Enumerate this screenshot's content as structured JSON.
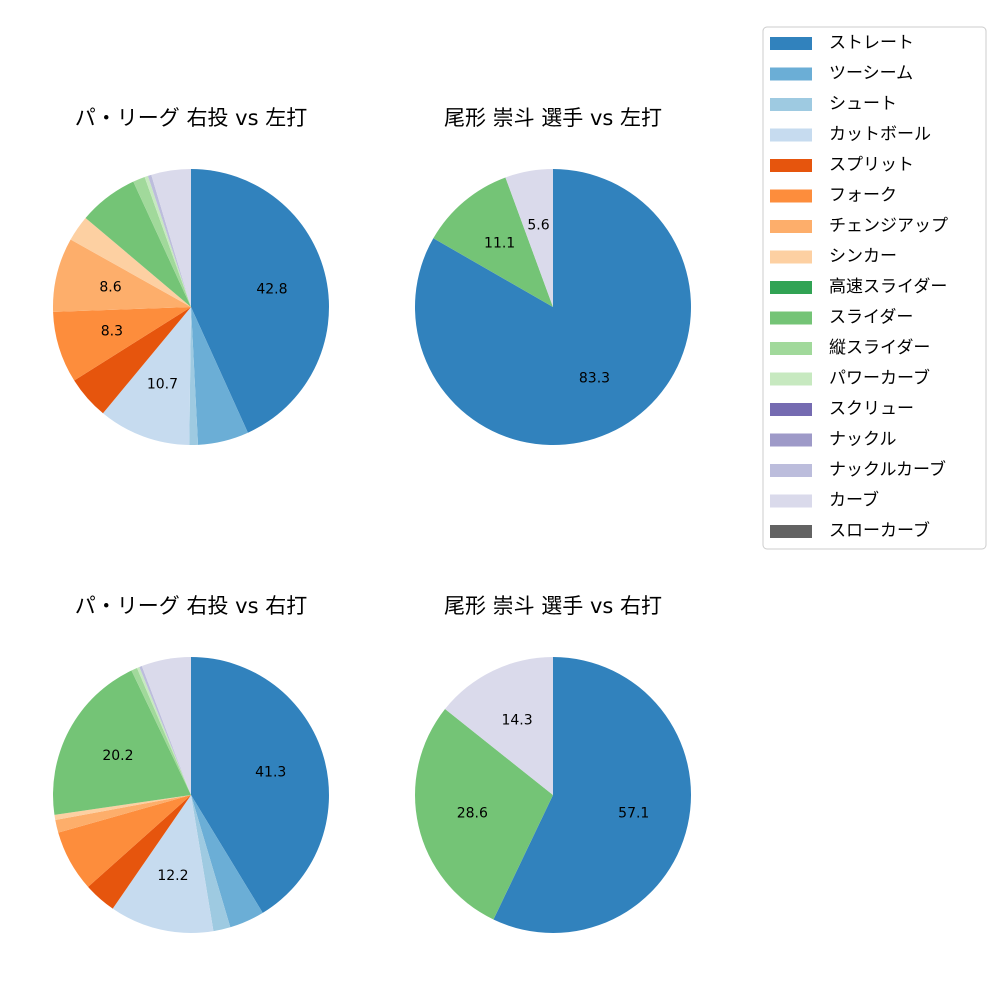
{
  "legend": {
    "placement": "right",
    "entries": [
      {
        "name": "ストレート",
        "color": "#3182bd"
      },
      {
        "name": "ツーシーム",
        "color": "#6baed6"
      },
      {
        "name": "シュート",
        "color": "#9ecae1"
      },
      {
        "name": "カットボール",
        "color": "#c6dbef"
      },
      {
        "name": "スプリット",
        "color": "#e6550d"
      },
      {
        "name": "フォーク",
        "color": "#fd8d3c"
      },
      {
        "name": "チェンジアップ",
        "color": "#fdae6b"
      },
      {
        "name": "シンカー",
        "color": "#fdd0a2"
      },
      {
        "name": "高速スライダー",
        "color": "#31a354"
      },
      {
        "name": "スライダー",
        "color": "#74c476"
      },
      {
        "name": "縦スライダー",
        "color": "#a1d99b"
      },
      {
        "name": "パワーカーブ",
        "color": "#c7e9c0"
      },
      {
        "name": "スクリュー",
        "color": "#756bb1"
      },
      {
        "name": "ナックル",
        "color": "#9e9ac8"
      },
      {
        "name": "ナックルカーブ",
        "color": "#bcbddc"
      },
      {
        "name": "カーブ",
        "color": "#dadaeb"
      },
      {
        "name": "スローカーブ",
        "color": "#636363"
      }
    ]
  },
  "chart_data": [
    {
      "type": "pie",
      "title": "パ・リーグ 右投 vs 左打",
      "start_angle": 90,
      "direction": "clockwise",
      "slices": [
        {
          "name": "ストレート",
          "value": 42.8,
          "label": "42.8"
        },
        {
          "name": "ツーシーム",
          "value": 5.9,
          "label": ""
        },
        {
          "name": "シュート",
          "value": 1.0,
          "label": ""
        },
        {
          "name": "カットボール",
          "value": 10.7,
          "label": "10.7"
        },
        {
          "name": "スプリット",
          "value": 5.0,
          "label": ""
        },
        {
          "name": "フォーク",
          "value": 8.3,
          "label": "8.3"
        },
        {
          "name": "チェンジアップ",
          "value": 8.6,
          "label": "8.6"
        },
        {
          "name": "シンカー",
          "value": 3.0,
          "label": ""
        },
        {
          "name": "スライダー",
          "value": 6.9,
          "label": ""
        },
        {
          "name": "縦スライダー",
          "value": 1.4,
          "label": ""
        },
        {
          "name": "パワーカーブ",
          "value": 0.4,
          "label": ""
        },
        {
          "name": "ナックルカーブ",
          "value": 0.4,
          "label": ""
        },
        {
          "name": "カーブ",
          "value": 4.6,
          "label": ""
        }
      ]
    },
    {
      "type": "pie",
      "title": "尾形 崇斗 選手 vs 左打",
      "start_angle": 90,
      "direction": "clockwise",
      "slices": [
        {
          "name": "ストレート",
          "value": 83.3,
          "label": "83.3"
        },
        {
          "name": "スライダー",
          "value": 11.1,
          "label": "11.1"
        },
        {
          "name": "カーブ",
          "value": 5.6,
          "label": "5.6"
        }
      ]
    },
    {
      "type": "pie",
      "title": "パ・リーグ 右投 vs 右打",
      "start_angle": 90,
      "direction": "clockwise",
      "slices": [
        {
          "name": "ストレート",
          "value": 41.3,
          "label": "41.3"
        },
        {
          "name": "ツーシーム",
          "value": 4.1,
          "label": ""
        },
        {
          "name": "シュート",
          "value": 2.0,
          "label": ""
        },
        {
          "name": "カットボール",
          "value": 12.2,
          "label": "12.2"
        },
        {
          "name": "スプリット",
          "value": 3.8,
          "label": ""
        },
        {
          "name": "フォーク",
          "value": 7.2,
          "label": ""
        },
        {
          "name": "チェンジアップ",
          "value": 1.5,
          "label": ""
        },
        {
          "name": "シンカー",
          "value": 0.6,
          "label": ""
        },
        {
          "name": "スライダー",
          "value": 20.2,
          "label": "20.2"
        },
        {
          "name": "縦スライダー",
          "value": 0.7,
          "label": ""
        },
        {
          "name": "パワーカーブ",
          "value": 0.3,
          "label": ""
        },
        {
          "name": "ナックルカーブ",
          "value": 0.3,
          "label": ""
        },
        {
          "name": "カーブ",
          "value": 5.8,
          "label": ""
        }
      ]
    },
    {
      "type": "pie",
      "title": "尾形 崇斗 選手 vs 右打",
      "start_angle": 90,
      "direction": "clockwise",
      "slices": [
        {
          "name": "ストレート",
          "value": 57.1,
          "label": "57.1"
        },
        {
          "name": "スライダー",
          "value": 28.6,
          "label": "28.6"
        },
        {
          "name": "カーブ",
          "value": 14.3,
          "label": "14.3"
        }
      ]
    }
  ]
}
